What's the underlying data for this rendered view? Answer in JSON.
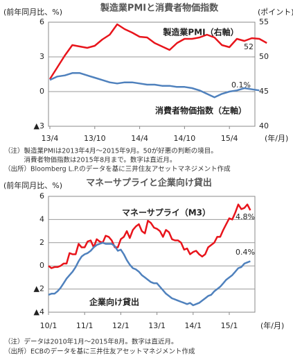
{
  "chart_data": [
    {
      "type": "line",
      "title": "製造業PMIと消費者物価指数",
      "y_label": "(前年同月比、%)",
      "y2_label": "(ポイント)",
      "x_unit": "(年/月)",
      "categories": [
        "13/4",
        null,
        null,
        null,
        null,
        null,
        "13/10",
        null,
        null,
        null,
        null,
        null,
        "14/4",
        null,
        null,
        null,
        null,
        null,
        "14/10",
        null,
        null,
        null,
        null,
        null,
        "15/4",
        null,
        null,
        null,
        null,
        null
      ],
      "ylim": [
        -3,
        6
      ],
      "yticks": [
        6,
        3,
        0,
        {
          "value": -3,
          "label": "▲3"
        }
      ],
      "y2lim": [
        40,
        55
      ],
      "y2ticks": [
        55,
        50,
        45,
        40
      ],
      "grid": true,
      "series": [
        {
          "name": "製造業PMI（右軸）",
          "color": "#e8141b",
          "axis": "y2",
          "values": [
            46.8,
            48.5,
            50.2,
            51.7,
            51.5,
            51.3,
            51.6,
            52.5,
            53.2,
            54.7,
            54.0,
            53.5,
            52.9,
            52.8,
            52.0,
            51.5,
            51.0,
            52.0,
            52.6,
            52.6,
            52.8,
            53.2,
            52.8,
            51.7,
            51.4,
            52.6,
            52.3,
            52.7,
            52.6,
            52.0
          ],
          "last_label": "52"
        },
        {
          "name": "消費者物価指数（左軸）",
          "color": "#4f81bd",
          "values": [
            1.0,
            1.3,
            1.4,
            1.6,
            1.6,
            1.4,
            1.2,
            1.0,
            0.8,
            0.7,
            0.8,
            0.8,
            0.7,
            0.6,
            0.6,
            0.5,
            0.5,
            0.4,
            0.4,
            0.3,
            0.1,
            -0.2,
            -0.5,
            -0.2,
            0.0,
            0.1,
            0.3,
            0.2,
            0.1,
            null
          ],
          "last_label": "0.1%"
        }
      ],
      "notes": [
        "（注）製造業PMIは2013年4月～2015年9月。50が好悪の判断の境目。",
        "　　　消費者物価指数は2015年8月まで。数字は直近月。",
        "（出所）Bloomberg L.P.のデータを基に三井住友アセットマネジメント作成"
      ]
    },
    {
      "type": "line",
      "title": "マネーサプライと企業向け貸出",
      "y_label": "(前年同月比、%)",
      "x_unit": "(年/月)",
      "categories": [
        "10/1",
        null,
        null,
        null,
        null,
        null,
        null,
        null,
        null,
        null,
        null,
        null,
        "11/1",
        null,
        null,
        null,
        null,
        null,
        null,
        null,
        null,
        null,
        null,
        null,
        "12/1",
        null,
        null,
        null,
        null,
        null,
        null,
        null,
        null,
        null,
        null,
        null,
        "13/1",
        null,
        null,
        null,
        null,
        null,
        null,
        null,
        null,
        null,
        null,
        null,
        "14/1",
        null,
        null,
        null,
        null,
        null,
        null,
        null,
        null,
        null,
        null,
        null,
        "15/1",
        null,
        null,
        null,
        null,
        null,
        null,
        null
      ],
      "ylim": [
        -4,
        6
      ],
      "yticks": [
        6,
        4,
        2,
        0,
        {
          "value": -2,
          "label": "▲2"
        },
        {
          "value": -4,
          "label": "▲4"
        }
      ],
      "grid": true,
      "series": [
        {
          "name": "マネーサプライ（M3）",
          "color": "#e8141b",
          "values": [
            0.0,
            -0.2,
            -0.1,
            -0.1,
            0.0,
            0.2,
            0.2,
            1.1,
            1.0,
            1.0,
            1.9,
            1.6,
            1.6,
            2.1,
            2.2,
            1.6,
            2.3,
            2.1,
            2.0,
            2.6,
            2.5,
            2.2,
            1.6,
            1.6,
            2.3,
            2.5,
            3.0,
            2.4,
            3.1,
            3.4,
            3.6,
            3.0,
            2.8,
            3.9,
            3.7,
            3.3,
            3.2,
            3.0,
            2.5,
            3.1,
            2.9,
            2.3,
            2.2,
            2.2,
            2.0,
            1.4,
            1.5,
            1.0,
            1.2,
            1.3,
            1.0,
            0.8,
            1.0,
            1.6,
            1.8,
            2.0,
            2.5,
            2.5,
            3.1,
            3.6,
            4.1,
            4.0,
            4.6,
            5.3,
            4.9,
            5.0,
            5.3,
            4.8
          ],
          "last_label": "4.8%"
        },
        {
          "name": "企業向け貸出",
          "color": "#4f81bd",
          "values": [
            -2.5,
            -2.4,
            -2.4,
            -2.2,
            -1.9,
            -1.5,
            -1.1,
            -0.8,
            -0.5,
            -0.1,
            0.4,
            0.8,
            1.0,
            1.1,
            1.3,
            1.6,
            1.8,
            1.9,
            2.0,
            1.9,
            1.9,
            1.9,
            1.7,
            1.3,
            1.4,
            1.0,
            0.5,
            0.1,
            -0.2,
            -0.3,
            -0.5,
            -0.8,
            -1.0,
            -1.2,
            -1.4,
            -1.5,
            -1.5,
            -1.8,
            -2.1,
            -2.4,
            -2.6,
            -2.8,
            -2.9,
            -3.0,
            -3.1,
            -3.2,
            -3.3,
            -3.2,
            -3.4,
            -3.3,
            -3.2,
            -3.0,
            -2.8,
            -2.6,
            -2.5,
            -2.2,
            -2.0,
            -1.8,
            -1.5,
            -1.2,
            -1.0,
            -0.8,
            -0.5,
            -0.2,
            -0.1,
            0.2,
            0.3,
            0.4
          ],
          "last_label": "0.4%"
        }
      ],
      "notes": [
        "（注）データは2010年1月～2015年8月。数字は直近月。",
        "（出所）ECBのデータを基に三井住友アセットマネジメント作成"
      ]
    }
  ]
}
